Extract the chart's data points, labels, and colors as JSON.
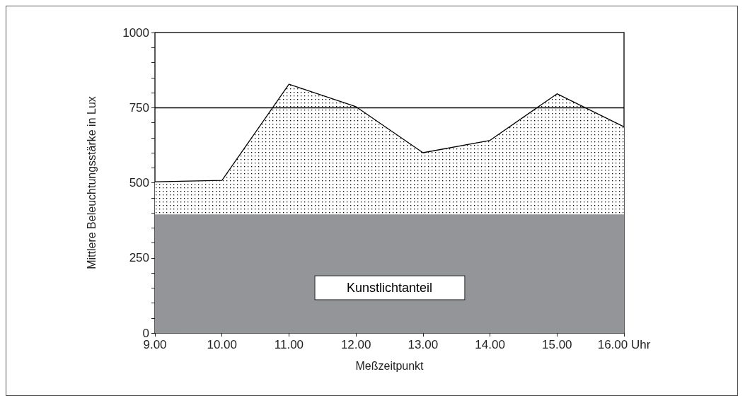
{
  "chart_data": {
    "type": "area",
    "xlabel": "Meßzeitpunkt",
    "ylabel": "Mittlere Beleuchtungsstärke in Lux",
    "x": [
      9,
      10,
      11,
      12,
      13,
      14,
      15,
      16
    ],
    "series": [
      {
        "color": "#000000",
        "values": [
          503,
          508,
          828,
          753,
          600,
          641,
          796,
          686
        ]
      },
      {
        "name": "Kunstlichtanteil",
        "color": "#939598",
        "values": [
          395,
          395,
          395,
          395,
          395,
          395,
          395,
          395
        ]
      }
    ],
    "xlim": [
      9,
      16
    ],
    "xticks": [
      {
        "value": 9,
        "label": "9.00"
      },
      {
        "value": 10,
        "label": "10.00"
      },
      {
        "value": 11,
        "label": "11.00"
      },
      {
        "value": 12,
        "label": "12.00"
      },
      {
        "value": 13,
        "label": "13.00"
      },
      {
        "value": 14,
        "label": "14.00"
      },
      {
        "value": 15,
        "label": "15.00"
      },
      {
        "value": 16,
        "label": "16.00 Uhr"
      }
    ],
    "ylim": [
      0,
      1000
    ],
    "yticks": [
      0,
      {
        "value": 50,
        "label": null
      },
      {
        "value": 100,
        "label": null
      },
      {
        "value": 150,
        "label": null
      },
      {
        "value": 200,
        "label": null
      },
      250,
      {
        "value": 300,
        "label": null
      },
      {
        "value": 350,
        "label": null
      },
      {
        "value": 400,
        "label": null
      },
      {
        "value": 450,
        "label": null
      },
      500,
      {
        "value": 550,
        "label": null
      },
      {
        "value": 600,
        "label": null
      },
      {
        "value": 650,
        "label": null
      },
      {
        "value": 700,
        "label": null
      },
      750,
      {
        "value": 800,
        "label": null
      },
      {
        "value": 850,
        "label": null
      },
      {
        "value": 900,
        "label": null
      },
      {
        "value": 950,
        "label": null
      },
      1000
    ],
    "ref_lines": [
      {
        "axis": "y",
        "value": 750
      }
    ],
    "grid": false,
    "legend": false,
    "marker": "none"
  }
}
